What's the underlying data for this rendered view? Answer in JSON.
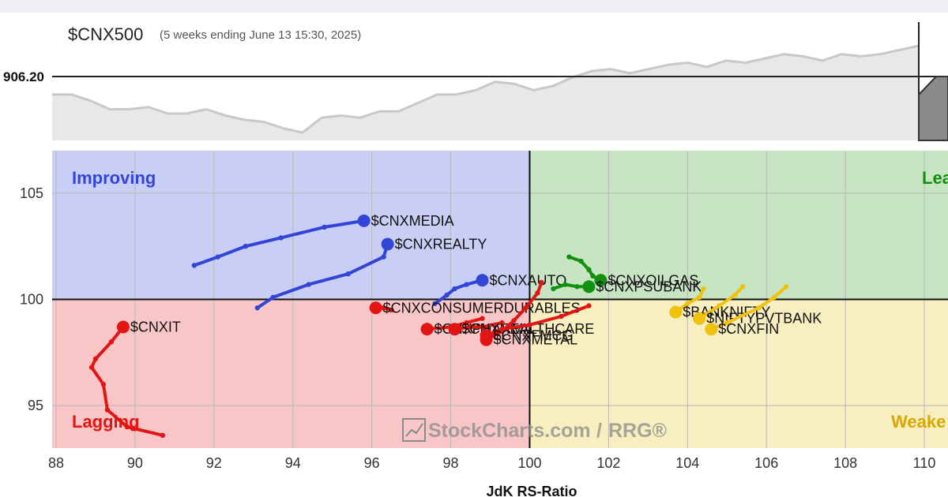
{
  "header": {
    "symbol": "$CNX500",
    "subtitle": "(5 weeks ending June 13 15:30, 2025)",
    "price_label": "906.20"
  },
  "watermark": {
    "brand": "StockCharts.com",
    "separator": "/",
    "product": "RRG®"
  },
  "colors": {
    "improving_bg": "#c9cef5",
    "leading_bg": "#c7e4c3",
    "lagging_bg": "#f8c6c6",
    "weakening_bg": "#f7efbf",
    "blue": "#3345d6",
    "green": "#12900f",
    "red": "#e31414",
    "yellow": "#f0c20e",
    "price_fill": "#e8e8e8",
    "price_line": "#c8c8c8"
  },
  "chart_data": {
    "type": "scatter",
    "xlabel": "JdK RS-Ratio",
    "ylabel": "",
    "xlim": [
      87.9,
      110.6
    ],
    "ylim": [
      93.0,
      107.0
    ],
    "x_ticks": [
      "88",
      "90",
      "92",
      "94",
      "96",
      "98",
      "100",
      "102",
      "104",
      "106",
      "108",
      "110"
    ],
    "y_ticks": [
      "95",
      "100",
      "105"
    ],
    "center": [
      100,
      100
    ],
    "quadrants": {
      "improving": "Improving",
      "leading": "Lea",
      "lagging": "Lagging",
      "weakening": "Weake"
    },
    "series": [
      {
        "name": "$CNXMEDIA",
        "color": "blue",
        "points": [
          [
            91.5,
            101.6
          ],
          [
            92.1,
            102.0
          ],
          [
            92.8,
            102.5
          ],
          [
            93.7,
            102.9
          ],
          [
            94.8,
            103.4
          ],
          [
            95.8,
            103.7
          ]
        ]
      },
      {
        "name": "$CNXREALTY",
        "color": "blue",
        "points": [
          [
            93.1,
            99.6
          ],
          [
            93.5,
            100.1
          ],
          [
            94.4,
            100.7
          ],
          [
            95.4,
            101.2
          ],
          [
            96.3,
            102.0
          ],
          [
            96.4,
            102.6
          ]
        ]
      },
      {
        "name": "$CNXAUTO",
        "color": "blue",
        "points": [
          [
            97.6,
            99.8
          ],
          [
            97.9,
            100.2
          ],
          [
            98.1,
            100.5
          ],
          [
            98.4,
            100.7
          ],
          [
            98.8,
            100.9
          ]
        ]
      },
      {
        "name": "$CNXOILGAS",
        "color": "green",
        "points": [
          [
            101.0,
            102.0
          ],
          [
            101.3,
            101.8
          ],
          [
            101.5,
            101.4
          ],
          [
            101.6,
            101.1
          ],
          [
            101.8,
            100.9
          ]
        ]
      },
      {
        "name": "$CNXPSUBANK",
        "color": "green",
        "points": [
          [
            100.6,
            100.5
          ],
          [
            100.9,
            100.7
          ],
          [
            101.2,
            100.6
          ],
          [
            101.5,
            100.6
          ]
        ]
      },
      {
        "name": "$CNXIT",
        "color": "red",
        "points": [
          [
            90.7,
            93.6
          ],
          [
            89.8,
            94.0
          ],
          [
            89.3,
            94.8
          ],
          [
            89.2,
            96.0
          ],
          [
            88.9,
            96.8
          ],
          [
            89.0,
            97.2
          ],
          [
            89.4,
            98.0
          ],
          [
            89.7,
            98.7
          ]
        ]
      },
      {
        "name": "$CNXCONSUMERDURABLES",
        "color": "red",
        "points": [
          [
            96.5,
            99.5
          ],
          [
            96.3,
            99.6
          ],
          [
            96.1,
            99.6
          ]
        ]
      },
      {
        "name": "$CNXPHARMA",
        "color": "red",
        "points": [
          [
            98.8,
            99.1
          ],
          [
            98.4,
            98.9
          ],
          [
            98.0,
            98.7
          ],
          [
            97.4,
            98.6
          ]
        ]
      },
      {
        "name": "$CNXHEALTHCARE",
        "color": "red",
        "points": [
          [
            99.3,
            98.9
          ],
          [
            98.8,
            98.7
          ],
          [
            98.5,
            98.7
          ],
          [
            98.1,
            98.6
          ]
        ]
      },
      {
        "name": "$CNXMETAL",
        "color": "red",
        "points": [
          [
            100.3,
            100.8
          ],
          [
            100.2,
            100.3
          ],
          [
            99.9,
            99.6
          ],
          [
            99.6,
            99.0
          ],
          [
            99.3,
            98.5
          ],
          [
            98.9,
            98.1
          ]
        ]
      },
      {
        "name": "$CNXFMCG",
        "color": "red",
        "points": [
          [
            101.5,
            99.7
          ],
          [
            100.8,
            99.2
          ],
          [
            100.0,
            98.8
          ],
          [
            99.3,
            98.6
          ],
          [
            98.9,
            98.3
          ]
        ]
      },
      {
        "name": "$BANKNIFTY",
        "color": "yellow",
        "points": [
          [
            104.4,
            100.5
          ],
          [
            104.3,
            100.1
          ],
          [
            104.0,
            99.8
          ],
          [
            103.7,
            99.4
          ]
        ]
      },
      {
        "name": "$NIFTYPVTBANK",
        "color": "yellow",
        "points": [
          [
            105.4,
            100.6
          ],
          [
            105.2,
            100.2
          ],
          [
            104.8,
            99.7
          ],
          [
            104.3,
            99.1
          ]
        ]
      },
      {
        "name": "$CNXFIN",
        "color": "yellow",
        "points": [
          [
            106.5,
            100.6
          ],
          [
            106.2,
            100.1
          ],
          [
            105.8,
            99.6
          ],
          [
            105.0,
            98.9
          ],
          [
            104.6,
            98.6
          ]
        ]
      }
    ],
    "price_series": [
      18,
      18,
      15,
      11,
      11,
      12,
      9,
      9,
      11,
      8,
      6,
      5,
      2,
      0,
      7,
      8,
      7,
      10,
      10,
      14,
      18,
      18,
      20,
      24,
      23,
      20,
      22,
      26,
      29,
      30,
      28,
      30,
      32,
      33,
      31,
      34,
      33,
      35,
      37,
      36,
      34,
      37,
      36,
      37,
      39,
      41
    ]
  }
}
